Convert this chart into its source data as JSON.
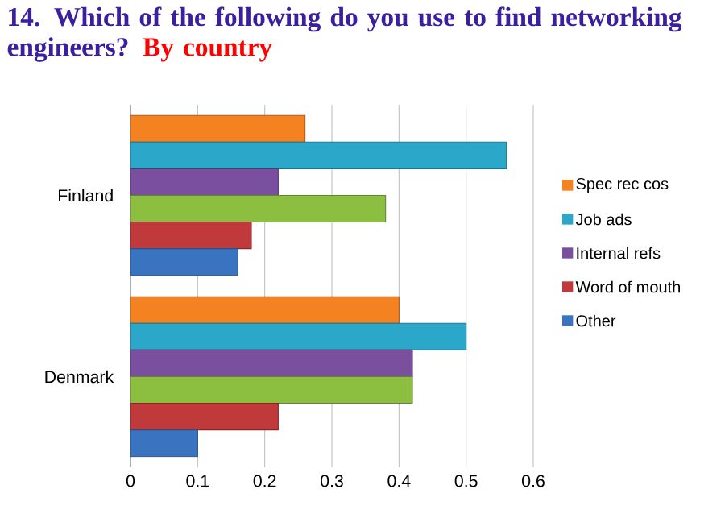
{
  "chart_data": {
    "type": "bar",
    "orientation": "horizontal",
    "title": "14. Which of the following do you use to find networking engineers?",
    "subtitle": "By country",
    "categories": [
      "Finland",
      "Denmark"
    ],
    "series": [
      {
        "name": "Spec rec cos",
        "color": "#f58220",
        "values": [
          0.26,
          0.4
        ]
      },
      {
        "name": "Job ads",
        "color": "#2aa7c9",
        "values": [
          0.56,
          0.5
        ]
      },
      {
        "name": "Internal refs",
        "color": "#7a4fa0",
        "values": [
          0.22,
          0.42
        ]
      },
      {
        "color": "#8cbf3f",
        "values": [
          0.38,
          0.42
        ]
      },
      {
        "name": "Word of mouth",
        "color": "#c0393b",
        "values": [
          0.18,
          0.22
        ]
      },
      {
        "name": "Other",
        "color": "#3a73c0",
        "values": [
          0.16,
          0.1
        ]
      }
    ],
    "xlim": [
      0,
      0.6
    ],
    "xticks": [
      0,
      0.1,
      0.2,
      0.3,
      0.4,
      0.5,
      0.6
    ],
    "grid": "x",
    "legend": "right"
  }
}
